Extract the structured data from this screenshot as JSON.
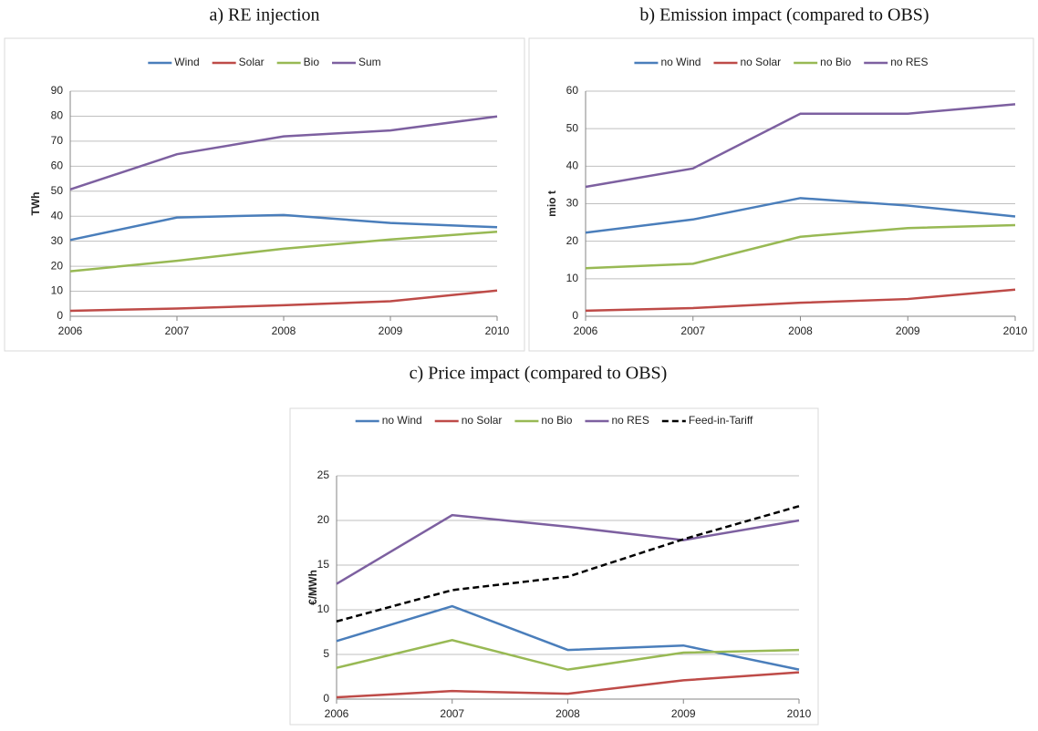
{
  "chart_data": [
    {
      "type": "line",
      "title": "a) RE injection",
      "y_label": "TWh",
      "x": [
        2006,
        2007,
        2008,
        2009,
        2010
      ],
      "xlim": [
        2006,
        2010
      ],
      "xticks": [
        2006,
        2007,
        2008,
        2009,
        2010
      ],
      "ylim": [
        0,
        90
      ],
      "yticks": [
        0,
        10,
        20,
        30,
        40,
        50,
        60,
        70,
        80,
        90
      ],
      "grid": true,
      "legend": "top",
      "series": [
        {
          "name": "Wind",
          "color": "#4a7ebb",
          "values": [
            30.5,
            39.5,
            40.5,
            37.3,
            35.6
          ]
        },
        {
          "name": "Solar",
          "color": "#be4b48",
          "values": [
            2.2,
            3.1,
            4.4,
            6.0,
            10.3
          ]
        },
        {
          "name": "Bio",
          "color": "#98b954",
          "values": [
            18.0,
            22.2,
            27.0,
            30.7,
            33.8
          ]
        },
        {
          "name": "Sum",
          "color": "#7d60a0",
          "values": [
            50.7,
            64.8,
            71.9,
            74.3,
            79.9
          ]
        }
      ]
    },
    {
      "type": "line",
      "title": "b) Emission impact (compared to OBS)",
      "y_label": "mio t",
      "x": [
        2006,
        2007,
        2008,
        2009,
        2010
      ],
      "xlim": [
        2006,
        2010
      ],
      "xticks": [
        2006,
        2007,
        2008,
        2009,
        2010
      ],
      "ylim": [
        0,
        60
      ],
      "yticks": [
        0,
        10,
        20,
        30,
        40,
        50,
        60
      ],
      "grid": true,
      "legend": "top",
      "series": [
        {
          "name": "no Wind",
          "color": "#4a7ebb",
          "values": [
            22.3,
            25.8,
            31.5,
            29.5,
            26.6
          ]
        },
        {
          "name": "no Solar",
          "color": "#be4b48",
          "values": [
            1.5,
            2.2,
            3.6,
            4.6,
            7.1
          ]
        },
        {
          "name": "no Bio",
          "color": "#98b954",
          "values": [
            12.8,
            14.0,
            21.2,
            23.5,
            24.3
          ]
        },
        {
          "name": "no RES",
          "color": "#7d60a0",
          "values": [
            34.5,
            39.4,
            54.0,
            54.0,
            56.5
          ]
        }
      ]
    },
    {
      "type": "line",
      "title": "c) Price impact (compared to OBS)",
      "y_label": "€/MWh",
      "x": [
        2006,
        2007,
        2008,
        2009,
        2010
      ],
      "xlim": [
        2006,
        2010
      ],
      "xticks": [
        2006,
        2007,
        2008,
        2009,
        2010
      ],
      "ylim": [
        0,
        25
      ],
      "yticks": [
        0,
        5,
        10,
        15,
        20,
        25
      ],
      "grid": true,
      "legend": "top",
      "series": [
        {
          "name": "no Wind",
          "color": "#4a7ebb",
          "values": [
            6.5,
            10.4,
            5.5,
            6.0,
            3.3
          ]
        },
        {
          "name": "no Solar",
          "color": "#be4b48",
          "values": [
            0.2,
            0.9,
            0.6,
            2.1,
            3.0
          ]
        },
        {
          "name": "no Bio",
          "color": "#98b954",
          "values": [
            3.5,
            6.6,
            3.3,
            5.2,
            5.5
          ]
        },
        {
          "name": "no RES",
          "color": "#7d60a0",
          "values": [
            12.9,
            20.6,
            19.3,
            17.8,
            20.0
          ]
        },
        {
          "name": "Feed-in-Tariff",
          "color": "#000000",
          "line_style": "dashed",
          "values": [
            8.7,
            12.2,
            13.7,
            17.9,
            21.6
          ]
        }
      ]
    }
  ]
}
